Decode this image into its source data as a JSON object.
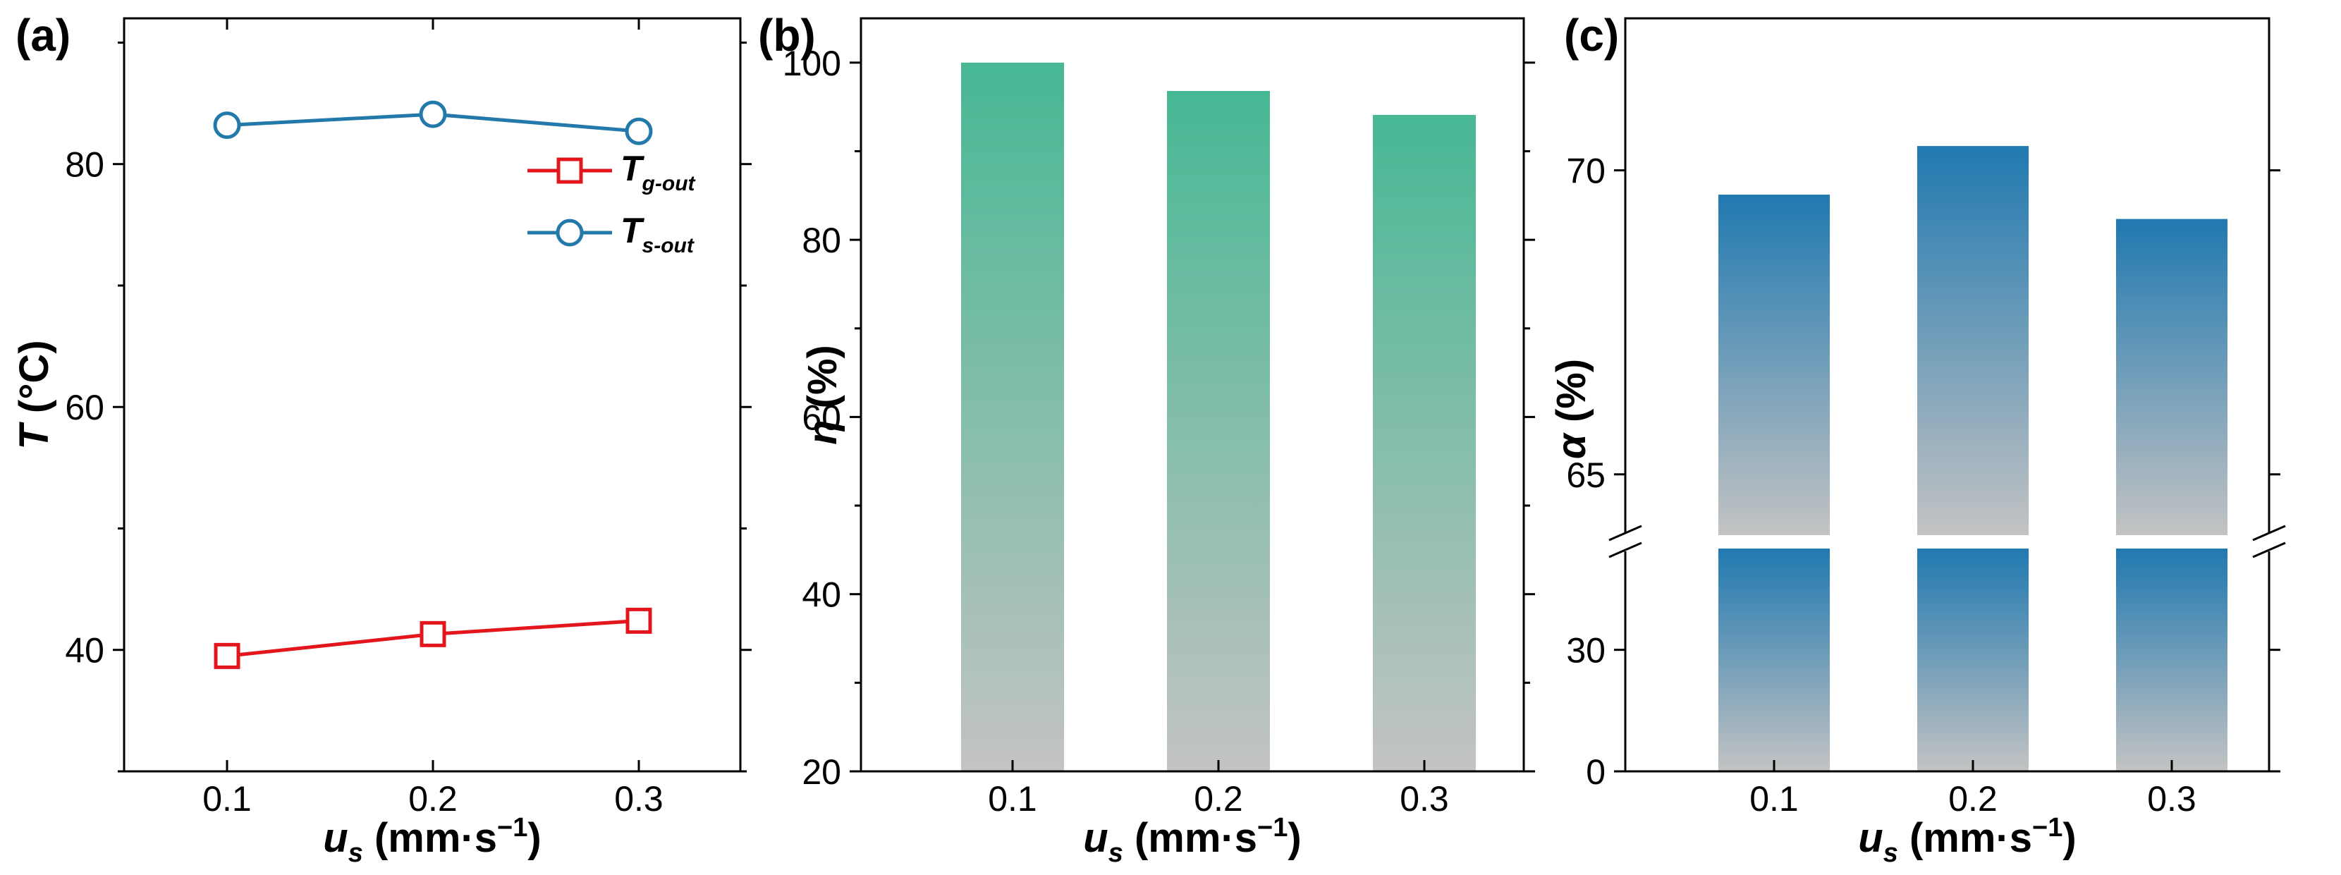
{
  "colors": {
    "tg": "#e3151d",
    "ts": "#2479ab",
    "eta_top": "#47b895",
    "alpha_top": "#2079b0",
    "bar_bottom": "#c3c3c3"
  },
  "chart_data": [
    {
      "panel": "(a)",
      "type": "line",
      "x": [
        0.1,
        0.2,
        0.3
      ],
      "xticks": [
        "0.1",
        "0.2",
        "0.3"
      ],
      "xlabel": {
        "main": "u",
        "sub": "s",
        "unit": " (mm·s",
        "exp": "−1",
        "close": ")"
      },
      "ylabel": {
        "main": "T",
        "unit": " (°C)"
      },
      "ylim": [
        30,
        92
      ],
      "yticks": [
        40,
        60,
        80
      ],
      "series": [
        {
          "id": "tg",
          "name": "T",
          "sub": "g-out",
          "marker": "square",
          "values": [
            39.5,
            41.3,
            42.4
          ]
        },
        {
          "id": "ts",
          "name": "T",
          "sub": "s-out",
          "marker": "circle",
          "values": [
            83.2,
            84.1,
            82.7
          ]
        }
      ],
      "legend": "top-right"
    },
    {
      "panel": "(b)",
      "type": "bar",
      "categories": [
        "0.1",
        "0.2",
        "0.3"
      ],
      "values": [
        100.0,
        96.8,
        94.1
      ],
      "ylabel": {
        "main": "η",
        "unit": " (%)"
      },
      "xlabel": {
        "main": "u",
        "sub": "s",
        "unit": " (mm·s",
        "exp": "−1",
        "close": ")"
      },
      "ylim": [
        20,
        105
      ],
      "yticks": [
        20,
        40,
        60,
        80,
        100
      ]
    },
    {
      "panel": "(c)",
      "type": "bar",
      "categories": [
        "0.1",
        "0.2",
        "0.3"
      ],
      "values": [
        69.6,
        70.4,
        69.2
      ],
      "ylabel": {
        "main": "α",
        "unit": " (%)"
      },
      "xlabel": {
        "main": "u",
        "sub": "s",
        "unit": " (mm·s",
        "exp": "−1",
        "close": ")"
      },
      "broken_axis": true,
      "lower_ylim": [
        0,
        55
      ],
      "upper_ylim": [
        64.0,
        72.5
      ],
      "lower_yticks": [
        0,
        30
      ],
      "upper_yticks": [
        65,
        70
      ]
    }
  ]
}
